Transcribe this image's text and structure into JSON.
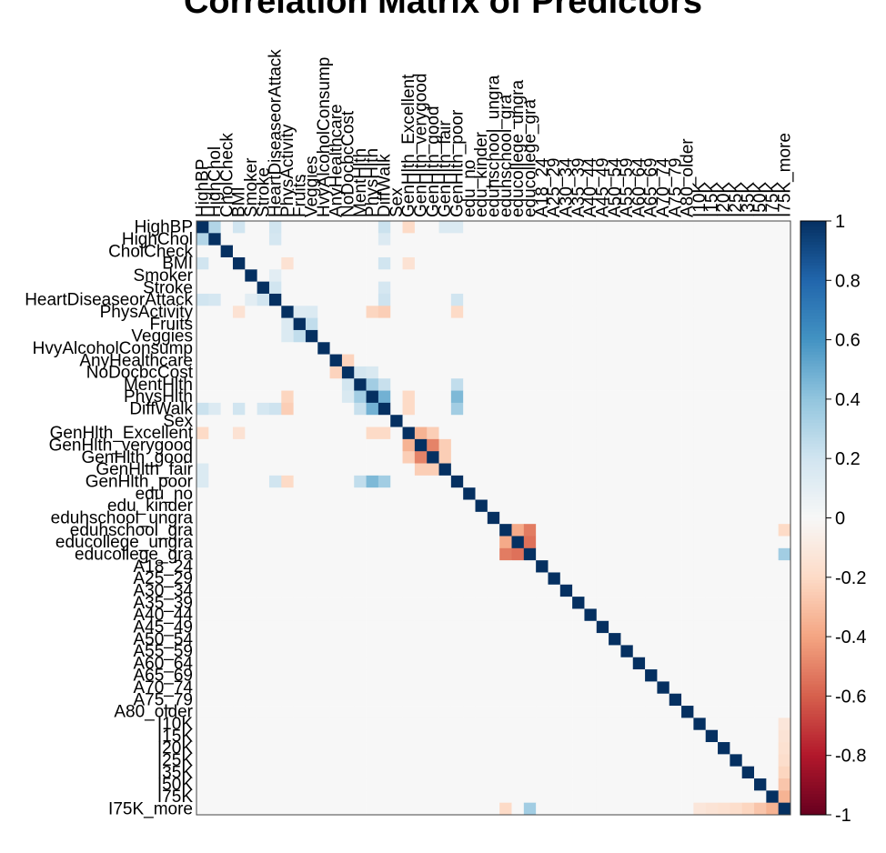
{
  "chart_data": {
    "type": "heatmap",
    "title": "Correlation Matrix of Predictors",
    "variables": [
      "HighBP",
      "HighChol",
      "CholCheck",
      "BMI",
      "Smoker",
      "Stroke",
      "HeartDiseaseorAttack",
      "PhysActivity",
      "Fruits",
      "Veggies",
      "HvyAlcoholConsump",
      "AnyHealthcare",
      "NoDocbcCost",
      "MentHlth",
      "PhysHlth",
      "DiffWalk",
      "Sex",
      "GenHlth_Excellent",
      "GenHlth_verygood",
      "GenHlth_good",
      "GenHlth_fair",
      "GenHlth_poor",
      "edu_no",
      "edu_kinder",
      "eduhschool_ungra",
      "eduhschool_gra",
      "educollege_ungra",
      "educollege_gra",
      "A18_24",
      "A25_29",
      "A30_34",
      "A35_39",
      "A40_44",
      "A45_49",
      "A50_54",
      "A55_59",
      "A60_64",
      "A65_69",
      "A70_74",
      "A75_79",
      "A80_older",
      "I10K",
      "I15K",
      "I20K",
      "I25K",
      "I35K",
      "I50K",
      "I75K",
      "I75K_more"
    ],
    "colorbar": {
      "ticks": [
        "1",
        "0.8",
        "0.6",
        "0.4",
        "0.2",
        "0",
        "-0.2",
        "-0.4",
        "-0.6",
        "-0.8",
        "-1"
      ],
      "range": [
        -1,
        1
      ],
      "high_color": "#053061",
      "mid_color": "#f7f7f7",
      "low_color": "#67001f"
    },
    "notable_values": [
      {
        "row": "HighBP",
        "col": "HighChol",
        "value": 0.3
      },
      {
        "row": "HighBP",
        "col": "BMI",
        "value": 0.2
      },
      {
        "row": "HighBP",
        "col": "HeartDiseaseorAttack",
        "value": 0.2
      },
      {
        "row": "HighBP",
        "col": "DiffWalk",
        "value": 0.22
      },
      {
        "row": "HighBP",
        "col": "GenHlth_Excellent",
        "value": -0.2
      },
      {
        "row": "HighBP",
        "col": "GenHlth_fair",
        "value": 0.15
      },
      {
        "row": "HighBP",
        "col": "GenHlth_poor",
        "value": 0.15
      },
      {
        "row": "HighChol",
        "col": "HeartDiseaseorAttack",
        "value": 0.18
      },
      {
        "row": "HighChol",
        "col": "DiffWalk",
        "value": 0.14
      },
      {
        "row": "BMI",
        "col": "DiffWalk",
        "value": 0.2
      },
      {
        "row": "BMI",
        "col": "PhysActivity",
        "value": -0.15
      },
      {
        "row": "BMI",
        "col": "GenHlth_Excellent",
        "value": -0.15
      },
      {
        "row": "Smoker",
        "col": "HeartDiseaseorAttack",
        "value": 0.11
      },
      {
        "row": "Stroke",
        "col": "HeartDiseaseorAttack",
        "value": 0.2
      },
      {
        "row": "Stroke",
        "col": "DiffWalk",
        "value": 0.18
      },
      {
        "row": "HeartDiseaseorAttack",
        "col": "DiffWalk",
        "value": 0.21
      },
      {
        "row": "HeartDiseaseorAttack",
        "col": "GenHlth_poor",
        "value": 0.2
      },
      {
        "row": "PhysActivity",
        "col": "Fruits",
        "value": 0.14
      },
      {
        "row": "PhysActivity",
        "col": "Veggies",
        "value": 0.15
      },
      {
        "row": "PhysActivity",
        "col": "PhysHlth",
        "value": -0.22
      },
      {
        "row": "PhysActivity",
        "col": "DiffWalk",
        "value": -0.25
      },
      {
        "row": "PhysActivity",
        "col": "GenHlth_poor",
        "value": -0.2
      },
      {
        "row": "Fruits",
        "col": "Veggies",
        "value": 0.25
      },
      {
        "row": "AnyHealthcare",
        "col": "NoDocbcCost",
        "value": -0.23
      },
      {
        "row": "NoDocbcCost",
        "col": "MentHlth",
        "value": 0.19
      },
      {
        "row": "NoDocbcCost",
        "col": "PhysHlth",
        "value": 0.16
      },
      {
        "row": "MentHlth",
        "col": "PhysHlth",
        "value": 0.35
      },
      {
        "row": "MentHlth",
        "col": "DiffWalk",
        "value": 0.23
      },
      {
        "row": "MentHlth",
        "col": "GenHlth_poor",
        "value": 0.25
      },
      {
        "row": "PhysHlth",
        "col": "DiffWalk",
        "value": 0.48
      },
      {
        "row": "PhysHlth",
        "col": "GenHlth_poor",
        "value": 0.45
      },
      {
        "row": "PhysHlth",
        "col": "GenHlth_Excellent",
        "value": -0.2
      },
      {
        "row": "DiffWalk",
        "col": "GenHlth_poor",
        "value": 0.35
      },
      {
        "row": "DiffWalk",
        "col": "GenHlth_Excellent",
        "value": -0.2
      },
      {
        "row": "GenHlth_Excellent",
        "col": "GenHlth_verygood",
        "value": -0.35
      },
      {
        "row": "GenHlth_Excellent",
        "col": "GenHlth_good",
        "value": -0.25
      },
      {
        "row": "GenHlth_verygood",
        "col": "GenHlth_good",
        "value": -0.5
      },
      {
        "row": "GenHlth_verygood",
        "col": "GenHlth_fair",
        "value": -0.25
      },
      {
        "row": "GenHlth_good",
        "col": "GenHlth_fair",
        "value": -0.25
      },
      {
        "row": "eduhschool_gra",
        "col": "educollege_ungra",
        "value": -0.38
      },
      {
        "row": "eduhschool_gra",
        "col": "educollege_gra",
        "value": -0.52
      },
      {
        "row": "educollege_ungra",
        "col": "educollege_gra",
        "value": -0.55
      },
      {
        "row": "educollege_gra",
        "col": "I75K_more",
        "value": 0.35
      },
      {
        "row": "eduhschool_gra",
        "col": "I75K_more",
        "value": -0.2
      },
      {
        "row": "I10K",
        "col": "I75K_more",
        "value": -0.12
      },
      {
        "row": "I15K",
        "col": "I75K_more",
        "value": -0.14
      },
      {
        "row": "I20K",
        "col": "I75K_more",
        "value": -0.16
      },
      {
        "row": "I25K",
        "col": "I75K_more",
        "value": -0.18
      },
      {
        "row": "I35K",
        "col": "I75K_more",
        "value": -0.22
      },
      {
        "row": "I50K",
        "col": "I75K_more",
        "value": -0.28
      },
      {
        "row": "I75K",
        "col": "I75K_more",
        "value": -0.35
      }
    ]
  }
}
